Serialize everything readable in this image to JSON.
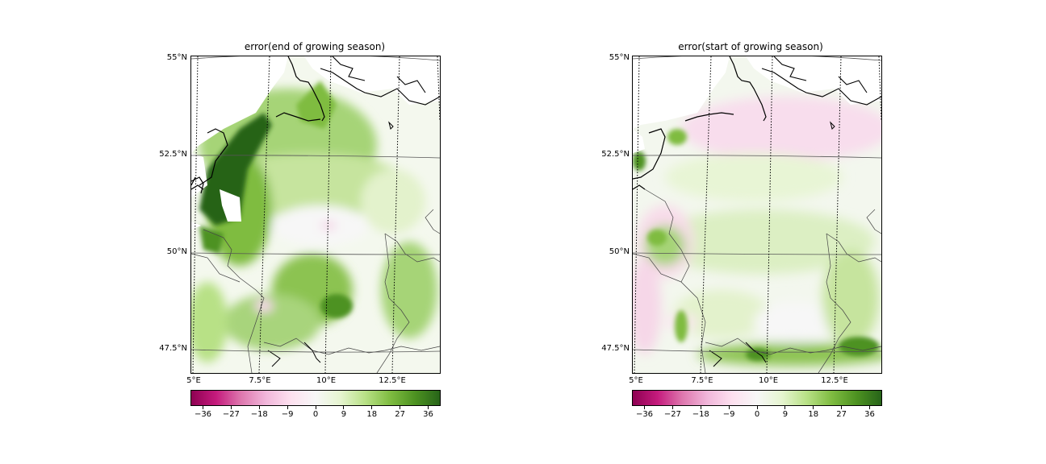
{
  "maps": [
    {
      "title": "error(end of growing season)",
      "variant": "end",
      "lat_labels": [
        "55°N",
        "52.5°N",
        "50°N",
        "47.5°N"
      ],
      "lon_labels": [
        "5°E",
        "7.5°E",
        "10°E",
        "12.5°E"
      ]
    },
    {
      "title": "error(start of growing season)",
      "variant": "start",
      "lat_labels": [
        "55°N",
        "52.5°N",
        "50°N",
        "47.5°N"
      ],
      "lon_labels": [
        "5°E",
        "7.5°E",
        "10°E",
        "12.5°E"
      ]
    }
  ],
  "colorbar": {
    "ticks": [
      "−36",
      "−27",
      "−18",
      "−9",
      "0",
      "9",
      "18",
      "27",
      "36"
    ],
    "min": -40,
    "max": 40,
    "tick_values": [
      -36,
      -27,
      -18,
      -9,
      0,
      9,
      18,
      27,
      36
    ],
    "colormap": [
      "#8e0152",
      "#c51b7d",
      "#de77ae",
      "#f1b6da",
      "#fde0ef",
      "#f7f7f7",
      "#e6f5d0",
      "#b8e186",
      "#7fbc41",
      "#4d9221",
      "#276419"
    ]
  }
}
